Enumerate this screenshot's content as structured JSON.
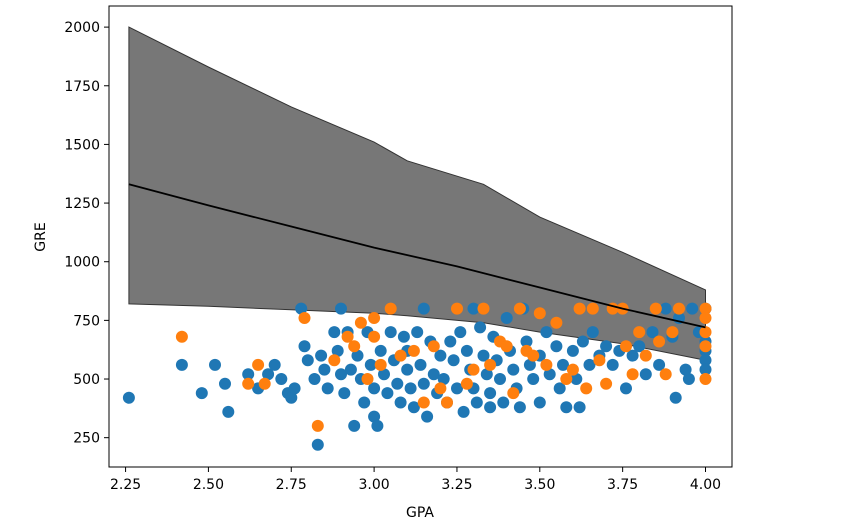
{
  "chart_data": {
    "type": "scatter",
    "xlabel": "GPA",
    "ylabel": "GRE",
    "xlim": [
      2.2,
      4.08
    ],
    "ylim": [
      125,
      2090
    ],
    "xticks": [
      2.25,
      2.5,
      2.75,
      3.0,
      3.25,
      3.5,
      3.75,
      4.0
    ],
    "xtick_labels": [
      "2.25",
      "2.50",
      "2.75",
      "3.00",
      "3.25",
      "3.50",
      "3.75",
      "4.00"
    ],
    "yticks": [
      250,
      500,
      750,
      1000,
      1250,
      1500,
      1750,
      2000
    ],
    "ytick_labels": [
      "250",
      "500",
      "750",
      "1000",
      "1250",
      "1500",
      "1750",
      "2000"
    ],
    "grid": false,
    "colors": {
      "series0": "#1f77b4",
      "series1": "#ff7f0e",
      "band": "#555555",
      "line": "#000000"
    },
    "band": {
      "x": [
        2.26,
        2.5,
        2.75,
        3.0,
        3.1,
        3.33,
        3.5,
        3.75,
        4.0
      ],
      "upper": [
        2000,
        1830,
        1660,
        1510,
        1430,
        1330,
        1190,
        1040,
        880
      ],
      "lower": [
        820,
        810,
        795,
        780,
        770,
        740,
        700,
        650,
        580
      ]
    },
    "line": {
      "x": [
        2.26,
        2.5,
        2.75,
        3.0,
        3.25,
        3.5,
        3.75,
        4.0
      ],
      "y": [
        1330,
        1240,
        1150,
        1060,
        980,
        890,
        800,
        720
      ]
    },
    "series": [
      {
        "points": [
          [
            2.26,
            420
          ],
          [
            2.42,
            560
          ],
          [
            2.48,
            440
          ],
          [
            2.52,
            560
          ],
          [
            2.55,
            480
          ],
          [
            2.56,
            360
          ],
          [
            2.62,
            520
          ],
          [
            2.65,
            460
          ],
          [
            2.68,
            520
          ],
          [
            2.7,
            560
          ],
          [
            2.72,
            500
          ],
          [
            2.74,
            440
          ],
          [
            2.75,
            420
          ],
          [
            2.76,
            460
          ],
          [
            2.78,
            800
          ],
          [
            2.79,
            640
          ],
          [
            2.8,
            580
          ],
          [
            2.82,
            500
          ],
          [
            2.83,
            220
          ],
          [
            2.84,
            600
          ],
          [
            2.85,
            540
          ],
          [
            2.86,
            460
          ],
          [
            2.88,
            700
          ],
          [
            2.89,
            620
          ],
          [
            2.9,
            800
          ],
          [
            2.9,
            520
          ],
          [
            2.91,
            440
          ],
          [
            2.92,
            700
          ],
          [
            2.93,
            540
          ],
          [
            2.94,
            300
          ],
          [
            2.95,
            600
          ],
          [
            2.96,
            500
          ],
          [
            2.97,
            400
          ],
          [
            2.98,
            700
          ],
          [
            2.99,
            560
          ],
          [
            3.0,
            460
          ],
          [
            3.0,
            340
          ],
          [
            3.01,
            300
          ],
          [
            3.02,
            620
          ],
          [
            3.03,
            520
          ],
          [
            3.04,
            440
          ],
          [
            3.05,
            700
          ],
          [
            3.06,
            580
          ],
          [
            3.07,
            480
          ],
          [
            3.08,
            400
          ],
          [
            3.09,
            680
          ],
          [
            3.1,
            620
          ],
          [
            3.1,
            540
          ],
          [
            3.11,
            460
          ],
          [
            3.12,
            380
          ],
          [
            3.13,
            700
          ],
          [
            3.14,
            560
          ],
          [
            3.15,
            800
          ],
          [
            3.15,
            480
          ],
          [
            3.16,
            340
          ],
          [
            3.17,
            660
          ],
          [
            3.18,
            520
          ],
          [
            3.19,
            440
          ],
          [
            3.2,
            600
          ],
          [
            3.21,
            500
          ],
          [
            3.22,
            400
          ],
          [
            3.23,
            660
          ],
          [
            3.24,
            580
          ],
          [
            3.25,
            460
          ],
          [
            3.26,
            700
          ],
          [
            3.27,
            360
          ],
          [
            3.28,
            620
          ],
          [
            3.29,
            540
          ],
          [
            3.3,
            800
          ],
          [
            3.3,
            460
          ],
          [
            3.31,
            400
          ],
          [
            3.32,
            720
          ],
          [
            3.33,
            600
          ],
          [
            3.34,
            520
          ],
          [
            3.35,
            440
          ],
          [
            3.35,
            380
          ],
          [
            3.36,
            680
          ],
          [
            3.37,
            580
          ],
          [
            3.38,
            500
          ],
          [
            3.39,
            400
          ],
          [
            3.4,
            760
          ],
          [
            3.41,
            620
          ],
          [
            3.42,
            540
          ],
          [
            3.43,
            460
          ],
          [
            3.44,
            380
          ],
          [
            3.45,
            800
          ],
          [
            3.46,
            660
          ],
          [
            3.47,
            560
          ],
          [
            3.48,
            500
          ],
          [
            3.5,
            600
          ],
          [
            3.5,
            400
          ],
          [
            3.52,
            700
          ],
          [
            3.53,
            520
          ],
          [
            3.55,
            640
          ],
          [
            3.56,
            460
          ],
          [
            3.57,
            560
          ],
          [
            3.58,
            380
          ],
          [
            3.6,
            620
          ],
          [
            3.61,
            500
          ],
          [
            3.62,
            380
          ],
          [
            3.63,
            660
          ],
          [
            3.65,
            560
          ],
          [
            3.66,
            700
          ],
          [
            3.68,
            600
          ],
          [
            3.7,
            640
          ],
          [
            3.72,
            560
          ],
          [
            3.74,
            620
          ],
          [
            3.76,
            460
          ],
          [
            3.78,
            600
          ],
          [
            3.8,
            640
          ],
          [
            3.82,
            520
          ],
          [
            3.84,
            700
          ],
          [
            3.86,
            560
          ],
          [
            3.88,
            800
          ],
          [
            3.9,
            680
          ],
          [
            3.91,
            420
          ],
          [
            3.92,
            760
          ],
          [
            3.94,
            540
          ],
          [
            3.95,
            500
          ],
          [
            3.96,
            800
          ],
          [
            3.98,
            700
          ],
          [
            4.0,
            800
          ],
          [
            4.0,
            660
          ],
          [
            4.0,
            620
          ],
          [
            4.0,
            580
          ],
          [
            4.0,
            540
          ]
        ]
      },
      {
        "points": [
          [
            2.42,
            680
          ],
          [
            2.62,
            480
          ],
          [
            2.65,
            560
          ],
          [
            2.67,
            480
          ],
          [
            2.79,
            760
          ],
          [
            2.83,
            300
          ],
          [
            2.88,
            580
          ],
          [
            2.92,
            680
          ],
          [
            2.94,
            640
          ],
          [
            2.96,
            740
          ],
          [
            2.98,
            500
          ],
          [
            3.0,
            760
          ],
          [
            3.0,
            680
          ],
          [
            3.02,
            560
          ],
          [
            3.05,
            800
          ],
          [
            3.08,
            600
          ],
          [
            3.12,
            620
          ],
          [
            3.15,
            400
          ],
          [
            3.18,
            640
          ],
          [
            3.2,
            460
          ],
          [
            3.22,
            400
          ],
          [
            3.25,
            800
          ],
          [
            3.28,
            480
          ],
          [
            3.3,
            540
          ],
          [
            3.33,
            800
          ],
          [
            3.35,
            560
          ],
          [
            3.38,
            660
          ],
          [
            3.4,
            640
          ],
          [
            3.42,
            440
          ],
          [
            3.44,
            800
          ],
          [
            3.46,
            620
          ],
          [
            3.48,
            600
          ],
          [
            3.5,
            780
          ],
          [
            3.52,
            560
          ],
          [
            3.55,
            740
          ],
          [
            3.58,
            500
          ],
          [
            3.6,
            540
          ],
          [
            3.62,
            800
          ],
          [
            3.64,
            460
          ],
          [
            3.66,
            800
          ],
          [
            3.68,
            580
          ],
          [
            3.7,
            480
          ],
          [
            3.72,
            800
          ],
          [
            3.75,
            800
          ],
          [
            3.76,
            640
          ],
          [
            3.78,
            520
          ],
          [
            3.8,
            700
          ],
          [
            3.82,
            600
          ],
          [
            3.85,
            800
          ],
          [
            3.86,
            660
          ],
          [
            3.88,
            520
          ],
          [
            3.9,
            700
          ],
          [
            3.92,
            800
          ],
          [
            4.0,
            800
          ],
          [
            4.0,
            760
          ],
          [
            4.0,
            700
          ],
          [
            4.0,
            640
          ],
          [
            4.0,
            500
          ]
        ]
      }
    ]
  }
}
